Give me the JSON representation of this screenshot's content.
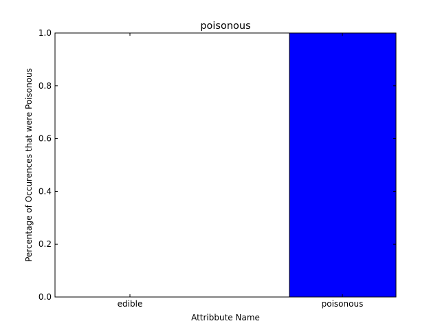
{
  "chart_data": {
    "type": "bar",
    "title": "poisonous",
    "xlabel": "Attribbute Name",
    "ylabel": "Percentage of Occurences that were Poisonous",
    "categories": [
      "edible",
      "poisonous"
    ],
    "values": [
      0.0,
      1.0
    ],
    "ylim": [
      0.0,
      1.0
    ],
    "yticks": [
      "0.0",
      "0.2",
      "0.4",
      "0.6",
      "0.8",
      "1.0"
    ],
    "bar_color": "#0000ff",
    "grid": false,
    "legend": "none"
  }
}
